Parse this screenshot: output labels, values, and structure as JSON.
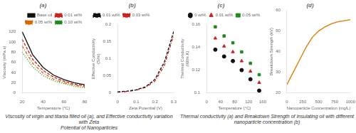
{
  "chart_data": [
    {
      "type": "line",
      "title": "(a)",
      "x_label": "Temperature (°C)",
      "y_label": "Viscosity (mPa.s)",
      "x": [
        20,
        30,
        40,
        50,
        60,
        70,
        80
      ],
      "series": [
        {
          "name": "Base oil",
          "color": "#111111",
          "line_style": "solid",
          "values": [
            120,
            75,
            50,
            35,
            26,
            20,
            16
          ]
        },
        {
          "name": "0.01 wt%",
          "color": "#cc2222",
          "line_style": "dashed",
          "values": [
            105,
            66,
            44,
            31,
            23,
            17,
            14
          ]
        },
        {
          "name": "0.05 wt%",
          "color": "#dd6600",
          "line_style": "dashdot",
          "values": [
            92,
            58,
            39,
            27,
            20,
            15,
            12
          ]
        },
        {
          "name": "0.10 wt%",
          "color": "#228822",
          "line_style": "dotted",
          "values": [
            80,
            51,
            34,
            24,
            18,
            13,
            10
          ]
        }
      ],
      "xlim": [
        20,
        80
      ],
      "xticks": [
        20,
        40,
        60,
        80
      ],
      "ylim": [
        0,
        120
      ],
      "yticks": [
        0,
        20,
        40,
        60,
        80,
        100,
        120
      ],
      "grid": false,
      "legend": "upper right",
      "annotations": [
        "Viscosity of virgin and titania filled oil (a), and Effective conductivity variation with Zeta\nPotential of Nanoparticles"
      ]
    },
    {
      "type": "line",
      "title": "(b)",
      "x_label": "Zeta Potential (V)",
      "y_label": "Effective Conductivity\n(S/m)",
      "x": [
        0.0,
        0.05,
        0.1,
        0.15,
        0.2,
        0.25,
        0.3
      ],
      "series": [
        {
          "name": "0.01 wt%",
          "color": "#111111",
          "line_style": "dashed",
          "values": [
            0.003,
            0.005,
            0.009,
            0.018,
            0.04,
            0.09,
            0.18
          ]
        },
        {
          "name": "0.03 wt%",
          "color": "#cc2222",
          "line_style": "dashdot",
          "values": [
            0.002,
            0.004,
            0.008,
            0.016,
            0.035,
            0.08,
            0.17
          ]
        }
      ],
      "xlim": [
        0,
        0.3
      ],
      "xticks": [
        0,
        0.1,
        0.2,
        0.3
      ],
      "ylim": [
        0,
        0.2
      ],
      "yticks": [
        0,
        0.05,
        0.1,
        0.15,
        0.2
      ],
      "grid": false,
      "legend": "upper left"
    },
    {
      "type": "scatter",
      "title": "(c)",
      "x_label": "Temperature (°C)",
      "y_label": "Thermal Conductivity\n(W/m.K)",
      "x": [
        25,
        50,
        75,
        100,
        125,
        150
      ],
      "series": [
        {
          "name": "0 wt%",
          "color": "#111111",
          "marker": "circle",
          "values": [
            0.138,
            0.132,
            0.128,
            0.12,
            0.112,
            0.102
          ]
        },
        {
          "name": "0.01 wt%",
          "color": "#cc2222",
          "marker": "triangle",
          "values": [
            0.148,
            0.141,
            0.136,
            0.128,
            0.119,
            0.109
          ]
        },
        {
          "name": "0.05 wt%",
          "color": "#228822",
          "marker": "square",
          "values": [
            0.158,
            0.15,
            0.144,
            0.136,
            0.126,
            0.116
          ]
        }
      ],
      "xlim": [
        0,
        160
      ],
      "xticks": [
        0,
        40,
        80,
        120,
        160
      ],
      "ylim": [
        0.1,
        0.16
      ],
      "yticks": [
        0.1,
        0.12,
        0.14,
        0.16
      ],
      "grid": false,
      "legend": "upper right",
      "annotations": [
        "Thermal conductivity (a) and Breakdown Strength of Insulating oil with different\nnanoparticle concentration (b)"
      ]
    },
    {
      "type": "line",
      "title": "(d)",
      "x_label": "Nanoparticle Concentration (mg/L)",
      "y_label": "Breakdown Strength (kV)",
      "x": [
        0,
        100,
        200,
        300,
        400,
        500,
        600,
        700,
        800,
        900,
        1000
      ],
      "series": [
        {
          "color": "#dd7700",
          "line_style": "solid",
          "values": [
            24,
            30,
            36,
            42,
            47,
            50,
            52,
            53.5,
            54.5,
            55.0,
            55.5
          ]
        }
      ],
      "xlim": [
        0,
        1000
      ],
      "xticks": [
        0,
        250,
        500,
        750,
        1000
      ],
      "ylim": [
        20,
        60
      ],
      "yticks": [
        20,
        30,
        40,
        50,
        60
      ],
      "grid": false
    }
  ]
}
